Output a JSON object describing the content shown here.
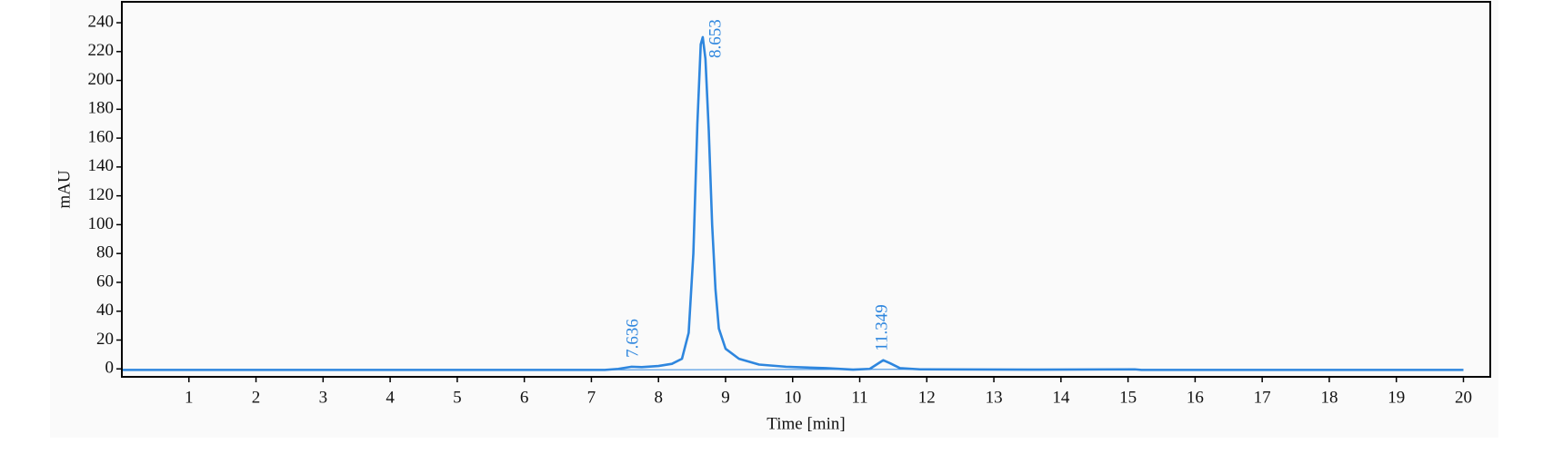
{
  "chart_data": {
    "type": "line",
    "xlabel": "Time [min]",
    "ylabel": "mAU",
    "xlim": [
      0,
      20.4
    ],
    "ylim": [
      -5.5,
      254.5
    ],
    "xticks": [
      1,
      2,
      3,
      4,
      5,
      6,
      7,
      8,
      9,
      10,
      11,
      12,
      13,
      14,
      15,
      16,
      17,
      18,
      19,
      20
    ],
    "yticks": [
      0,
      20,
      40,
      60,
      80,
      100,
      120,
      140,
      160,
      180,
      200,
      220,
      240
    ],
    "series": [
      {
        "color": "#2e86de",
        "width": 2.6,
        "x": [
          0,
          7.2,
          7.4,
          7.6,
          7.75,
          8.0,
          8.2,
          8.35,
          8.45,
          8.52,
          8.58,
          8.63,
          8.66,
          8.7,
          8.75,
          8.8,
          8.85,
          8.9,
          9.0,
          9.2,
          9.5,
          9.9,
          10.5,
          10.9,
          11.15,
          11.25,
          11.35,
          11.45,
          11.6,
          11.9,
          13.5,
          15.1,
          15.2,
          20
        ],
        "values": [
          -0.7,
          -0.7,
          0,
          1.5,
          1.2,
          2,
          3.5,
          7,
          25,
          80,
          170,
          225,
          230,
          215,
          165,
          100,
          55,
          28,
          14,
          7,
          3,
          1.5,
          0.5,
          -0.5,
          0,
          3,
          6,
          4,
          0.5,
          -0.3,
          -0.5,
          -0.3,
          -0.7,
          -0.7
        ]
      },
      {
        "color": "#2e86de",
        "width": 1,
        "x": [
          7.3,
          11.9
        ],
        "values": [
          -0.6,
          -0.3
        ]
      }
    ],
    "peaks": [
      {
        "x": 7.636,
        "y": 1.5
      },
      {
        "x": 8.653,
        "y": 230
      },
      {
        "x": 11.349,
        "y": 6
      }
    ]
  }
}
